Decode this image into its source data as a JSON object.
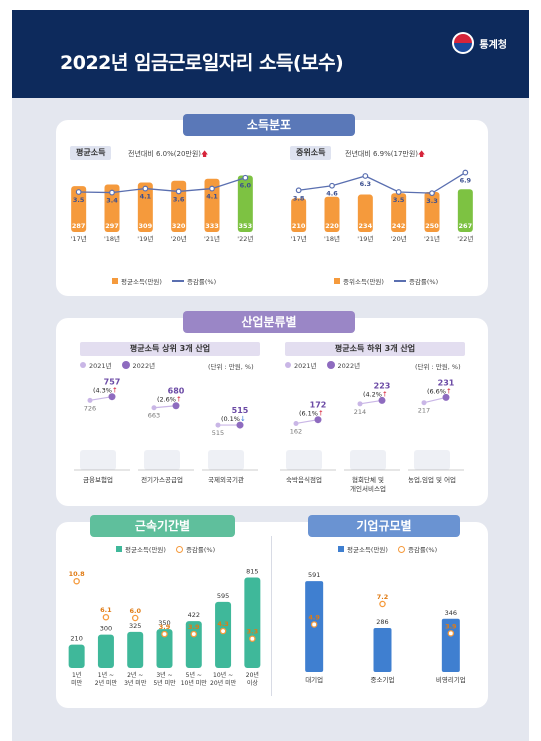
{
  "header": {
    "title": "2022년 임금근로일자리 소득(보수)",
    "agency": "통계청"
  },
  "section1": {
    "title": "소득분포",
    "avg": {
      "label": "평균소득",
      "note": "전년대비 6.0%(20만원)",
      "years": [
        "'17년",
        "'18년",
        "'19년",
        "'20년",
        "'21년",
        "'22년"
      ],
      "values": [
        287,
        297,
        309,
        320,
        333,
        353
      ],
      "rates": [
        3.5,
        3.4,
        4.1,
        3.6,
        4.1,
        6.0
      ],
      "value_labels": [
        "287",
        "297",
        "309",
        "320",
        "333",
        "353"
      ],
      "rate_labels": [
        "3.5",
        "3.4",
        "4.1",
        "3.6",
        "4.1",
        "6.0"
      ],
      "legend_bar": "평균소득(만원)",
      "legend_line": "증감률(%)"
    },
    "median": {
      "label": "중위소득",
      "note": "전년대비 6.9%(17만원)",
      "years": [
        "'17년",
        "'18년",
        "'19년",
        "'20년",
        "'21년",
        "'22년"
      ],
      "values": [
        210,
        220,
        234,
        242,
        250,
        267
      ],
      "rates": [
        3.8,
        4.6,
        6.3,
        3.5,
        3.3,
        6.9
      ],
      "value_labels": [
        "210",
        "220",
        "234",
        "242",
        "250",
        "267"
      ],
      "rate_labels": [
        "3.8",
        "4.6",
        "6.3",
        "3.5",
        "3.3",
        "6.9"
      ],
      "legend_bar": "중위소득(만원)",
      "legend_line": "증감률(%)"
    }
  },
  "section2": {
    "title": "산업분류별",
    "top": {
      "label": "평균소득 상위 3개 산업",
      "legend_2021": "2021년",
      "legend_2022": "2022년",
      "unit": "(단위 : 만원, %)",
      "items": [
        {
          "name": "금융보험업",
          "v2021": "726",
          "v2022": "757",
          "rate": "(4.3%",
          "arrow": "↑"
        },
        {
          "name": "전기가스공급업",
          "v2021": "663",
          "v2022": "680",
          "rate": "(2.6%",
          "arrow": "↑"
        },
        {
          "name": "국제외국기관",
          "v2021": "515",
          "v2022": "515",
          "rate": "(0.1%",
          "arrow": "↓"
        }
      ]
    },
    "bottom": {
      "label": "평균소득 하위 3개 산업",
      "legend_2021": "2021년",
      "legend_2022": "2022년",
      "unit": "(단위 : 만원, %)",
      "items": [
        {
          "name": "숙박음식점업",
          "v2021": "162",
          "v2022": "172",
          "rate": "(6.1%",
          "arrow": "↑"
        },
        {
          "name": "협회단체 및",
          "name2": "개인서비스업",
          "v2021": "214",
          "v2022": "223",
          "rate": "(4.2%",
          "arrow": "↑"
        },
        {
          "name": "농업,임업 및 어업",
          "v2021": "217",
          "v2022": "231",
          "rate": "(6.6%",
          "arrow": "↑"
        }
      ]
    }
  },
  "section3": {
    "title": "근속기간별",
    "legend_bar": "평균소득(만원)",
    "legend_rate": "증감률(%)",
    "categories": [
      [
        "1년",
        "미만"
      ],
      [
        "1년 ~",
        "2년 미만"
      ],
      [
        "2년 ~",
        "3년 미만"
      ],
      [
        "3년 ~",
        "5년 미만"
      ],
      [
        "5년 ~",
        "10년 미만"
      ],
      [
        "10년 ~",
        "20년 미만"
      ],
      [
        "20년",
        "이상"
      ]
    ],
    "values": [
      210,
      300,
      325,
      350,
      422,
      595,
      815
    ],
    "rates": [
      10.8,
      6.1,
      6.0,
      3.9,
      3.9,
      4.3,
      3.3
    ],
    "value_labels": [
      "210",
      "300",
      "325",
      "350",
      "422",
      "595",
      "815"
    ],
    "rate_labels": [
      "10.8",
      "6.1",
      "6.0",
      "3.9",
      "3.9",
      "4.3",
      "3.3"
    ]
  },
  "section4": {
    "title": "기업규모별",
    "legend_bar": "평균소득(만원)",
    "legend_rate": "증감률(%)",
    "categories": [
      "대기업",
      "중소기업",
      "비영리기업"
    ],
    "values": [
      591,
      286,
      346
    ],
    "rates": [
      4.9,
      7.2,
      3.9
    ],
    "value_labels": [
      "591",
      "286",
      "346"
    ],
    "rate_labels": [
      "4.9",
      "7.2",
      "3.9"
    ]
  },
  "colors": {
    "orange": "#f59a3c",
    "green": "#7dc242",
    "line": "#5a6fb0",
    "purple": "#8e6bbf",
    "teal": "#3fb89a",
    "blue": "#3f7fd0",
    "navy": "#0d2a5c"
  }
}
